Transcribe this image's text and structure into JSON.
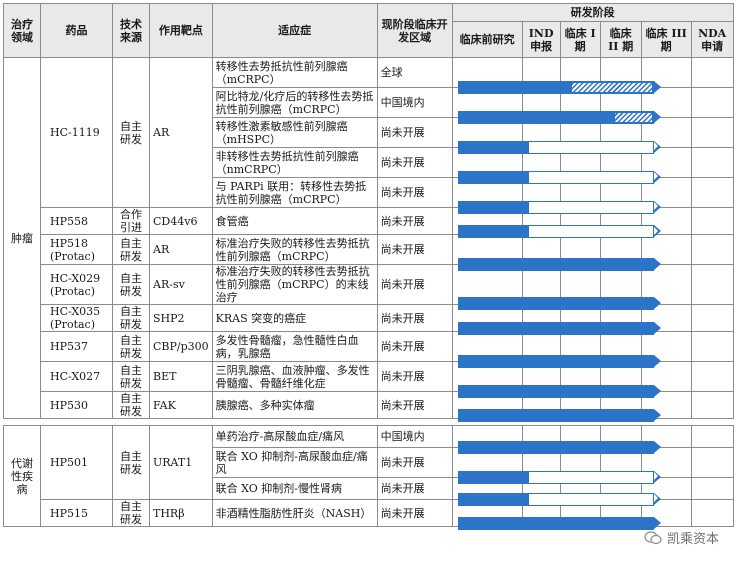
{
  "headers": {
    "area": "治疗领域",
    "drug": "药品",
    "source": "技术来源",
    "target": "作用靶点",
    "indication": "适应症",
    "region": "现阶段临床开发区域",
    "stages_title": "研发阶段",
    "stages": [
      "临床前研究",
      "IND 申报",
      "临床 I 期",
      "临床 II 期",
      "临床 III 期",
      "NDA 申请"
    ]
  },
  "colors": {
    "bar": "#2c74c7",
    "header_bg": "#e9e9e9",
    "border": "#8c8c8c"
  },
  "areas": [
    {
      "name": "肿瘤",
      "drugs": [
        {
          "name": "HC-1119",
          "source": "自主研发",
          "target": "AR",
          "rows": [
            {
              "indication": "转移性去势抵抗性前列腺癌（mCRPC）",
              "region": "全球",
              "solid": 0.58,
              "hatch": 0.42,
              "outline": 0
            },
            {
              "indication": "阿比特龙/化疗后的转移性去势抵抗性前列腺癌（mCRPC）",
              "region": "中国境内",
              "solid": 0.8,
              "hatch": 0.2,
              "outline": 0
            },
            {
              "indication": "转移性激素敏感性前列腺癌（mHSPC）",
              "region": "尚未开展",
              "solid": 0.36,
              "hatch": 0,
              "outline": 0.64
            },
            {
              "indication": "非转移性去势抵抗性前列腺癌（nmCRPC）",
              "region": "尚未开展",
              "solid": 0.36,
              "hatch": 0,
              "outline": 0.64
            },
            {
              "indication": "与 PARPi 联用：转移性去势抵抗性前列腺癌（mCRPC）",
              "region": "尚未开展",
              "solid": 0.36,
              "hatch": 0,
              "outline": 0.64
            }
          ]
        },
        {
          "name": "HP558",
          "source": "合作引进",
          "target": "CD44v6",
          "rows": [
            {
              "indication": "食管癌",
              "region": "尚未开展",
              "solid": 0.36,
              "hatch": 0,
              "outline": 0.64
            }
          ]
        },
        {
          "name": "HP518 (Protac)",
          "source": "自主研发",
          "target": "AR",
          "rows": [
            {
              "indication": "标准治疗失败的转移性去势抵抗性前列腺癌（mCRPC）",
              "region": "尚未开展",
              "solid": 1,
              "hatch": 0,
              "outline": 0
            }
          ]
        },
        {
          "name": "HC-X029 (Protac)",
          "source": "自主研发",
          "target": "AR-sv",
          "rows": [
            {
              "indication": "标准治疗失败的转移性去势抵抗性前列腺癌（mCRPC）的末线治疗",
              "region": "尚未开展",
              "solid": 1,
              "hatch": 0,
              "outline": 0
            }
          ]
        },
        {
          "name": "HC-X035 (Protac)",
          "source": "自主研发",
          "target": "SHP2",
          "rows": [
            {
              "indication": "KRAS 突变的癌症",
              "region": "尚未开展",
              "solid": 1,
              "hatch": 0,
              "outline": 0
            }
          ]
        },
        {
          "name": "HP537",
          "source": "自主研发",
          "target": "CBP/p300",
          "rows": [
            {
              "indication": "多发性骨髓瘤，急性髓性白血病，乳腺癌",
              "region": "尚未开展",
              "solid": 1,
              "hatch": 0,
              "outline": 0
            }
          ]
        },
        {
          "name": "HC-X027",
          "source": "自主研发",
          "target": "BET",
          "rows": [
            {
              "indication": "三阴乳腺癌、血液肿瘤、多发性骨髓瘤、骨髓纤维化症",
              "region": "尚未开展",
              "solid": 1,
              "hatch": 0,
              "outline": 0
            }
          ]
        },
        {
          "name": "HP530",
          "source": "自主研发",
          "target": "FAK",
          "rows": [
            {
              "indication": "胰腺癌、多种实体瘤",
              "region": "尚未开展",
              "solid": 1,
              "hatch": 0,
              "outline": 0
            }
          ]
        }
      ]
    },
    {
      "name": "代谢性疾病",
      "drugs": [
        {
          "name": "HP501",
          "source": "自主研发",
          "target": "URAT1",
          "rows": [
            {
              "indication": "单药治疗-高尿酸血症/痛风",
              "region": "中国境内",
              "solid": 1,
              "hatch": 0,
              "outline": 0
            },
            {
              "indication": "联合 XO 抑制剂-高尿酸血症/痛风",
              "region": "尚未开展",
              "solid": 0.36,
              "hatch": 0,
              "outline": 0.64
            },
            {
              "indication": "联合 XO 抑制剂-慢性肾病",
              "region": "尚未开展",
              "solid": 0.36,
              "hatch": 0,
              "outline": 0.64
            }
          ]
        },
        {
          "name": "HP515",
          "source": "自主研发",
          "target": "THRβ",
          "rows": [
            {
              "indication": "非酒精性脂肪性肝炎（NASH）",
              "region": "尚未开展",
              "solid": 1,
              "hatch": 0,
              "outline": 0
            }
          ]
        }
      ]
    }
  ],
  "watermark": "凯乘资本"
}
